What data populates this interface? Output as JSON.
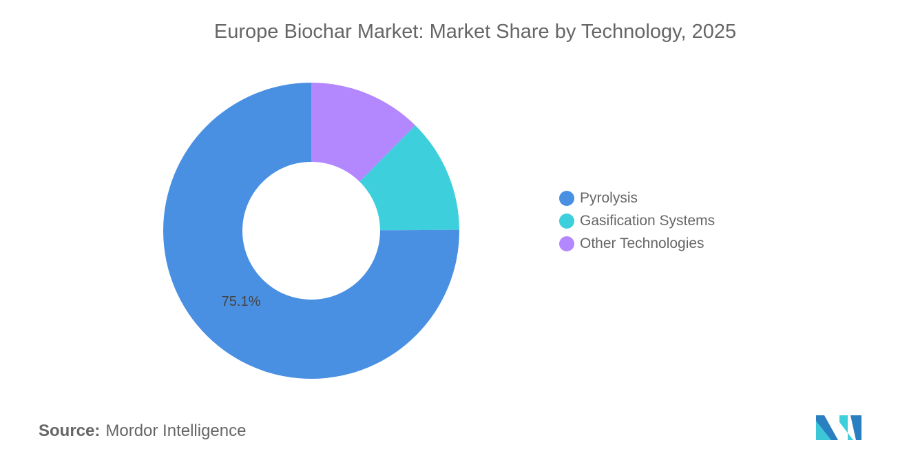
{
  "chart_data": {
    "type": "pie",
    "variant": "donut",
    "title": "Europe Biochar Market: Market Share by Technology, 2025",
    "categories": [
      "Pyrolysis",
      "Gasification Systems",
      "Other Technologies"
    ],
    "values": [
      75.1,
      12.5,
      12.4
    ],
    "colors": [
      "#4a90e2",
      "#3ecfdc",
      "#b388ff"
    ],
    "data_labels": [
      "75.1%",
      "",
      ""
    ],
    "legend_position": "right"
  },
  "source": {
    "label": "Source:",
    "value": "Mordor Intelligence"
  }
}
